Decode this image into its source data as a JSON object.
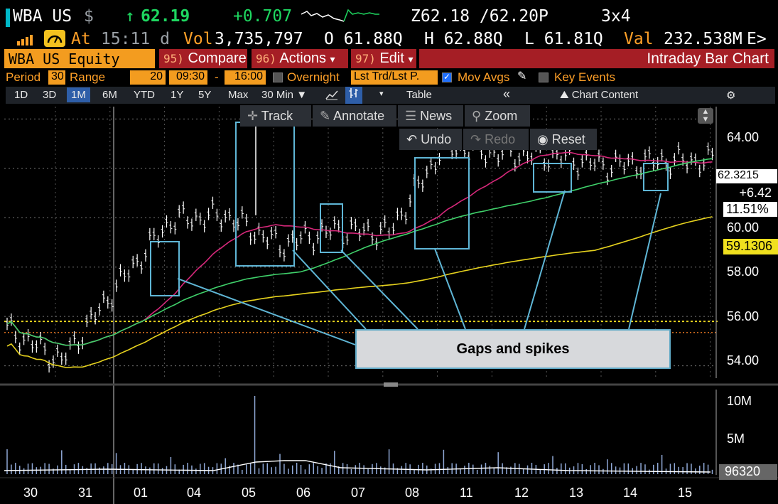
{
  "ticker": {
    "symbol": "WBA US",
    "currency": "$",
    "arrow": "↑",
    "last": "62.19",
    "change": "+0.707",
    "bid_ask": "Z62.18 /62.20P",
    "size": "3x4",
    "at_label": "At",
    "time": "15:11 d",
    "vol_label": "Vol",
    "volume": "3,735,797",
    "open": "O 61.88Q",
    "high": "H 62.88Q",
    "low": "L 61.81Q",
    "val_label": "Val",
    "value": "232.538M",
    "exchange": "E>"
  },
  "security_bar": {
    "security": "WBA US Equity",
    "compare_num": "95)",
    "compare": "Compare",
    "actions_num": "96)",
    "actions": "Actions",
    "edit_num": "97)",
    "edit": "Edit",
    "dropdown_arrow": "▾",
    "title": "Intraday Bar Chart"
  },
  "settings": {
    "period_label": "Period",
    "period": "30",
    "range_label": "Range",
    "range": "20",
    "start_time": "09:30",
    "dash": "-",
    "end_time": "16:00",
    "overnight": "Overnight",
    "lst_trd": "Lst Trd/Lst P.",
    "mov_avgs": "Mov Avgs",
    "key_events": "Key Events"
  },
  "toolbar": {
    "ranges": [
      "1D",
      "3D",
      "1M",
      "6M",
      "YTD",
      "1Y",
      "5Y",
      "Max"
    ],
    "selected_range": "1M",
    "interval": "30 Min ▼",
    "table": "Table",
    "collapse": "«",
    "chart_content": "Chart Content",
    "settings_icon": "gear-icon"
  },
  "chart_tools": {
    "track": "Track",
    "annotate": "Annotate",
    "news": "News",
    "zoom": "Zoom",
    "undo": "Undo",
    "redo": "Redo",
    "reset": "Reset"
  },
  "price_labels": {
    "last_price": "62.3215",
    "behind": "62.19",
    "change": "+6.42",
    "pct": "11.51%",
    "ma_value": "59.1306",
    "volume_last": "96320"
  },
  "annotation": "Gaps and spikes",
  "colors": {
    "ma_magenta": "#d6287a",
    "ma_green": "#3fd06a",
    "ma_yellow": "#e6d21e",
    "price_white": "#ffffff",
    "box_blue": "#5fb6d6",
    "accent_amber": "#f39c1f"
  },
  "chart_data": {
    "type": "line",
    "title": "",
    "x": [
      "30",
      "31",
      "01",
      "04",
      "05",
      "06",
      "07",
      "08",
      "11",
      "12",
      "13",
      "14",
      "15"
    ],
    "ylim": [
      53.5,
      64.5
    ],
    "yticks": [
      "64.00",
      "62.00",
      "60.00",
      "58.00",
      "56.00",
      "54.00"
    ],
    "volume_ticks": [
      "10M",
      "5M"
    ],
    "series": [
      {
        "values": [
          55.5,
          54.2,
          57.2,
          59.9,
          60.1,
          58.9,
          59.5,
          59.4,
          62.9,
          62.6,
          62.5,
          62.1,
          62.3
        ]
      }
    ]
  }
}
